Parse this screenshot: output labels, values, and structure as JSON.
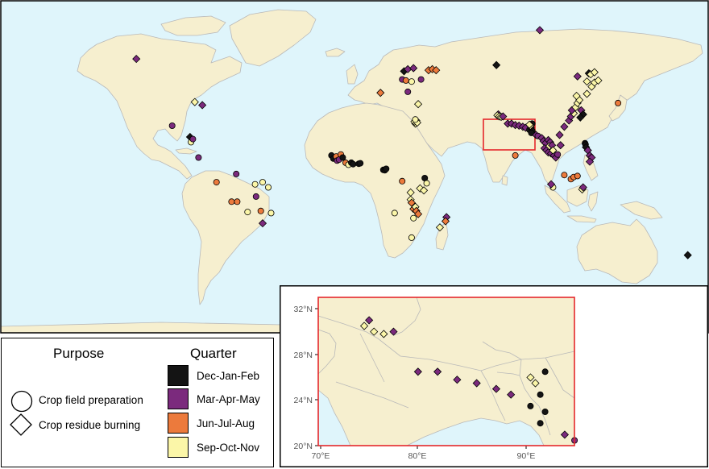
{
  "legend": {
    "purpose_title": "Purpose",
    "quarter_title": "Quarter",
    "purposes": [
      {
        "label": "Crop field preparation",
        "shape": "circle"
      },
      {
        "label": "Crop residue burning",
        "shape": "diamond"
      }
    ],
    "quarters": [
      {
        "label": "Dec-Jan-Feb",
        "color": "#141414"
      },
      {
        "label": "Mar-Apr-May",
        "color": "#7b2a7d"
      },
      {
        "label": "Jun-Jul-Aug",
        "color": "#ec7a3c"
      },
      {
        "label": "Sep-Oct-Nov",
        "color": "#fbf6a8"
      }
    ]
  },
  "colors": {
    "ocean": "#dff5fb",
    "land": "#f6efcf",
    "border": "#b9b9b9",
    "highlight": "#e4272b"
  },
  "inset": {
    "lon_ticks": [
      "70°E",
      "80°E",
      "90°E"
    ],
    "lat_ticks": [
      "32°N",
      "28°N",
      "24°N",
      "20°N"
    ]
  },
  "points": [
    {
      "lon": -117.0,
      "lat": 58.0,
      "shape": "diamond",
      "q": 1
    },
    {
      "lon": -86.0,
      "lat": 37.0,
      "shape": "diamond",
      "q": 3
    },
    {
      "lon": -82.0,
      "lat": 35.5,
      "shape": "diamond",
      "q": 1
    },
    {
      "lon": -98.0,
      "lat": 25.5,
      "shape": "circle",
      "q": 1
    },
    {
      "lon": -88.5,
      "lat": 20.0,
      "shape": "diamond",
      "q": 0
    },
    {
      "lon": -88.0,
      "lat": 17.5,
      "shape": "circle",
      "q": 3
    },
    {
      "lon": -87.0,
      "lat": 19.0,
      "shape": "circle",
      "q": 1
    },
    {
      "lon": -84.0,
      "lat": 10.0,
      "shape": "circle",
      "q": 1
    },
    {
      "lon": -74.5,
      "lat": -2.0,
      "shape": "circle",
      "q": 2
    },
    {
      "lon": -64.0,
      "lat": 2.0,
      "shape": "circle",
      "q": 1
    },
    {
      "lon": -54.0,
      "lat": -3.0,
      "shape": "circle",
      "q": 3
    },
    {
      "lon": -50.0,
      "lat": -2.0,
      "shape": "circle",
      "q": 3
    },
    {
      "lon": -47.0,
      "lat": -4.5,
      "shape": "circle",
      "q": 3
    },
    {
      "lon": -53.5,
      "lat": -9.0,
      "shape": "circle",
      "q": 1
    },
    {
      "lon": -66.5,
      "lat": -11.5,
      "shape": "circle",
      "q": 2
    },
    {
      "lon": -63.5,
      "lat": -11.5,
      "shape": "circle",
      "q": 2
    },
    {
      "lon": -58.0,
      "lat": -16.5,
      "shape": "circle",
      "q": 3
    },
    {
      "lon": -51.0,
      "lat": -16.0,
      "shape": "circle",
      "q": 2
    },
    {
      "lon": -45.5,
      "lat": -17.0,
      "shape": "circle",
      "q": 3
    },
    {
      "lon": -50.0,
      "lat": -22.0,
      "shape": "diamond",
      "q": 1
    },
    {
      "lon": -13.5,
      "lat": 11.0,
      "shape": "circle",
      "q": 0
    },
    {
      "lon": -12.5,
      "lat": 9.5,
      "shape": "circle",
      "q": 0
    },
    {
      "lon": -11.0,
      "lat": 10.5,
      "shape": "circle",
      "q": 2
    },
    {
      "lon": -10.5,
      "lat": 8.5,
      "shape": "circle",
      "q": 1
    },
    {
      "lon": -9.5,
      "lat": 9.0,
      "shape": "circle",
      "q": 1
    },
    {
      "lon": -8.5,
      "lat": 11.5,
      "shape": "circle",
      "q": 2
    },
    {
      "lon": -7.5,
      "lat": 10.0,
      "shape": "circle",
      "q": 0
    },
    {
      "lon": -6.0,
      "lat": 7.5,
      "shape": "circle",
      "q": 2
    },
    {
      "lon": -4.5,
      "lat": 6.5,
      "shape": "circle",
      "q": 3
    },
    {
      "lon": -3.0,
      "lat": 7.5,
      "shape": "circle",
      "q": 0
    },
    {
      "lon": -2.0,
      "lat": 6.8,
      "shape": "circle",
      "q": 0
    },
    {
      "lon": 1.0,
      "lat": 7.0,
      "shape": "circle",
      "q": 0
    },
    {
      "lon": 1.8,
      "lat": 7.2,
      "shape": "circle",
      "q": 0
    },
    {
      "lon": 14.0,
      "lat": 4.0,
      "shape": "circle",
      "q": 0
    },
    {
      "lon": 14.8,
      "lat": 3.8,
      "shape": "circle",
      "q": 0
    },
    {
      "lon": 15.5,
      "lat": 4.5,
      "shape": "circle",
      "q": 0
    },
    {
      "lon": 24.0,
      "lat": -1.5,
      "shape": "circle",
      "q": 2
    },
    {
      "lon": 36.0,
      "lat": 0.0,
      "shape": "circle",
      "q": 0
    },
    {
      "lon": 37.0,
      "lat": -2.5,
      "shape": "circle",
      "q": 3
    },
    {
      "lon": 33.5,
      "lat": -5.0,
      "shape": "diamond",
      "q": 3
    },
    {
      "lon": 35.5,
      "lat": -6.0,
      "shape": "diamond",
      "q": 3
    },
    {
      "lon": 28.5,
      "lat": -7.0,
      "shape": "diamond",
      "q": 3
    },
    {
      "lon": 28.5,
      "lat": -10.5,
      "shape": "diamond",
      "q": 3
    },
    {
      "lon": 29.0,
      "lat": -12.0,
      "shape": "diamond",
      "q": 2
    },
    {
      "lon": 30.0,
      "lat": -15.0,
      "shape": "diamond",
      "q": 2
    },
    {
      "lon": 31.0,
      "lat": -14.0,
      "shape": "diamond",
      "q": 3
    },
    {
      "lon": 31.5,
      "lat": -16.0,
      "shape": "diamond",
      "q": 2
    },
    {
      "lon": 32.5,
      "lat": -17.5,
      "shape": "diamond",
      "q": 2
    },
    {
      "lon": 30.0,
      "lat": -19.5,
      "shape": "circle",
      "q": 3
    },
    {
      "lon": 20.0,
      "lat": -17.0,
      "shape": "circle",
      "q": 3
    },
    {
      "lon": 29.0,
      "lat": -29.0,
      "shape": "circle",
      "q": 3
    },
    {
      "lon": 47.5,
      "lat": -19.0,
      "shape": "diamond",
      "q": 1
    },
    {
      "lon": 47.0,
      "lat": -21.0,
      "shape": "diamond",
      "q": 2
    },
    {
      "lon": 44.0,
      "lat": -24.0,
      "shape": "diamond",
      "q": 3
    },
    {
      "lon": 25.0,
      "lat": 52.0,
      "shape": "diamond",
      "q": 0
    },
    {
      "lon": 27.0,
      "lat": 53.0,
      "shape": "diamond",
      "q": 1
    },
    {
      "lon": 30.0,
      "lat": 53.5,
      "shape": "diamond",
      "q": 1
    },
    {
      "lon": 24.0,
      "lat": 48.0,
      "shape": "circle",
      "q": 1
    },
    {
      "lon": 26.0,
      "lat": 47.5,
      "shape": "circle",
      "q": 2
    },
    {
      "lon": 29.0,
      "lat": 47.0,
      "shape": "circle",
      "q": 3
    },
    {
      "lon": 27.0,
      "lat": 42.0,
      "shape": "circle",
      "q": 1
    },
    {
      "lon": 34.0,
      "lat": 48.0,
      "shape": "circle",
      "q": 1
    },
    {
      "lon": 38.0,
      "lat": 52.5,
      "shape": "diamond",
      "q": 2
    },
    {
      "lon": 40.0,
      "lat": 53.0,
      "shape": "diamond",
      "q": 2
    },
    {
      "lon": 42.0,
      "lat": 52.5,
      "shape": "diamond",
      "q": 2
    },
    {
      "lon": 12.5,
      "lat": 41.5,
      "shape": "diamond",
      "q": 2
    },
    {
      "lon": 32.5,
      "lat": 36.0,
      "shape": "diamond",
      "q": 3
    },
    {
      "lon": 31.0,
      "lat": 26.5,
      "shape": "diamond",
      "q": 3
    },
    {
      "lon": 31.5,
      "lat": 28.0,
      "shape": "diamond",
      "q": 3
    },
    {
      "lon": 30.5,
      "lat": 27.5,
      "shape": "diamond",
      "q": 3
    },
    {
      "lon": 32.0,
      "lat": 27.0,
      "shape": "diamond",
      "q": 3
    },
    {
      "lon": 31.0,
      "lat": 28.5,
      "shape": "circle",
      "q": 3
    },
    {
      "lon": 97.0,
      "lat": 72.0,
      "shape": "diamond",
      "q": 1
    },
    {
      "lon": 74.0,
      "lat": 55.0,
      "shape": "diamond",
      "q": 0
    },
    {
      "lon": 75.0,
      "lat": 31.0,
      "shape": "diamond",
      "q": 1
    },
    {
      "lon": 74.5,
      "lat": 30.5,
      "shape": "diamond",
      "q": 3
    },
    {
      "lon": 75.5,
      "lat": 30.0,
      "shape": "diamond",
      "q": 3
    },
    {
      "lon": 76.5,
      "lat": 29.8,
      "shape": "diamond",
      "q": 3
    },
    {
      "lon": 77.5,
      "lat": 30.0,
      "shape": "diamond",
      "q": 1
    },
    {
      "lon": 80.0,
      "lat": 26.5,
      "shape": "diamond",
      "q": 1
    },
    {
      "lon": 82.0,
      "lat": 26.5,
      "shape": "diamond",
      "q": 1
    },
    {
      "lon": 84.0,
      "lat": 25.8,
      "shape": "diamond",
      "q": 1
    },
    {
      "lon": 86.0,
      "lat": 25.5,
      "shape": "diamond",
      "q": 1
    },
    {
      "lon": 88.0,
      "lat": 25.0,
      "shape": "diamond",
      "q": 1
    },
    {
      "lon": 89.5,
      "lat": 24.5,
      "shape": "diamond",
      "q": 1
    },
    {
      "lon": 91.5,
      "lat": 23.5,
      "shape": "circle",
      "q": 0
    },
    {
      "lon": 92.5,
      "lat": 24.5,
      "shape": "circle",
      "q": 0
    },
    {
      "lon": 93.0,
      "lat": 23.0,
      "shape": "circle",
      "q": 0
    },
    {
      "lon": 92.5,
      "lat": 22.0,
      "shape": "circle",
      "q": 0
    },
    {
      "lon": 93.0,
      "lat": 26.5,
      "shape": "circle",
      "q": 0
    },
    {
      "lon": 92.0,
      "lat": 25.5,
      "shape": "diamond",
      "q": 3
    },
    {
      "lon": 91.5,
      "lat": 26.0,
      "shape": "diamond",
      "q": 3
    },
    {
      "lon": 95.0,
      "lat": 21.0,
      "shape": "diamond",
      "q": 1
    },
    {
      "lon": 96.0,
      "lat": 20.5,
      "shape": "circle",
      "q": 1
    },
    {
      "lon": 98.0,
      "lat": 19.5,
      "shape": "diamond",
      "q": 1
    },
    {
      "lon": 99.0,
      "lat": 18.0,
      "shape": "diamond",
      "q": 1
    },
    {
      "lon": 100.0,
      "lat": 17.0,
      "shape": "diamond",
      "q": 1
    },
    {
      "lon": 101.5,
      "lat": 18.5,
      "shape": "diamond",
      "q": 1
    },
    {
      "lon": 102.5,
      "lat": 17.5,
      "shape": "diamond",
      "q": 1
    },
    {
      "lon": 102.0,
      "lat": 15.5,
      "shape": "diamond",
      "q": 3
    },
    {
      "lon": 103.5,
      "lat": 16.0,
      "shape": "diamond",
      "q": 1
    },
    {
      "lon": 99.5,
      "lat": 14.5,
      "shape": "diamond",
      "q": 1
    },
    {
      "lon": 100.5,
      "lat": 13.5,
      "shape": "diamond",
      "q": 1
    },
    {
      "lon": 101.5,
      "lat": 12.5,
      "shape": "diamond",
      "q": 1
    },
    {
      "lon": 103.0,
      "lat": 12.0,
      "shape": "diamond",
      "q": 1
    },
    {
      "lon": 104.5,
      "lat": 11.0,
      "shape": "diamond",
      "q": 1
    },
    {
      "lon": 105.5,
      "lat": 10.0,
      "shape": "diamond",
      "q": 1
    },
    {
      "lon": 104.0,
      "lat": 13.5,
      "shape": "diamond",
      "q": 3
    },
    {
      "lon": 106.5,
      "lat": 11.5,
      "shape": "circle",
      "q": 1
    },
    {
      "lon": 107.5,
      "lat": 21.0,
      "shape": "diamond",
      "q": 1
    },
    {
      "lon": 108.0,
      "lat": 16.0,
      "shape": "diamond",
      "q": 1
    },
    {
      "lon": 110.0,
      "lat": 25.0,
      "shape": "diamond",
      "q": 1
    },
    {
      "lon": 112.5,
      "lat": 28.0,
      "shape": "diamond",
      "q": 1
    },
    {
      "lon": 113.5,
      "lat": 30.0,
      "shape": "diamond",
      "q": 1
    },
    {
      "lon": 115.0,
      "lat": 31.5,
      "shape": "diamond",
      "q": 3
    },
    {
      "lon": 114.0,
      "lat": 33.0,
      "shape": "diamond",
      "q": 1
    },
    {
      "lon": 116.0,
      "lat": 34.5,
      "shape": "diamond",
      "q": 3
    },
    {
      "lon": 117.0,
      "lat": 36.5,
      "shape": "diamond",
      "q": 3
    },
    {
      "lon": 118.0,
      "lat": 38.0,
      "shape": "diamond",
      "q": 3
    },
    {
      "lon": 116.5,
      "lat": 40.0,
      "shape": "diamond",
      "q": 3
    },
    {
      "lon": 119.0,
      "lat": 33.0,
      "shape": "diamond",
      "q": 1
    },
    {
      "lon": 120.0,
      "lat": 31.0,
      "shape": "diamond",
      "q": 0
    },
    {
      "lon": 118.5,
      "lat": 29.5,
      "shape": "diamond",
      "q": 0
    },
    {
      "lon": 122.0,
      "lat": 41.0,
      "shape": "diamond",
      "q": 3
    },
    {
      "lon": 124.5,
      "lat": 44.5,
      "shape": "diamond",
      "q": 3
    },
    {
      "lon": 126.0,
      "lat": 46.5,
      "shape": "diamond",
      "q": 3
    },
    {
      "lon": 128.0,
      "lat": 47.5,
      "shape": "diamond",
      "q": 3
    },
    {
      "lon": 122.0,
      "lat": 47.0,
      "shape": "diamond",
      "q": 3
    },
    {
      "lon": 123.0,
      "lat": 51.0,
      "shape": "diamond",
      "q": 0
    },
    {
      "lon": 124.0,
      "lat": 50.5,
      "shape": "diamond",
      "q": 3
    },
    {
      "lon": 126.0,
      "lat": 51.5,
      "shape": "diamond",
      "q": 3
    },
    {
      "lon": 117.0,
      "lat": 49.5,
      "shape": "diamond",
      "q": 1
    },
    {
      "lon": 138.5,
      "lat": 36.5,
      "shape": "circle",
      "q": 2
    },
    {
      "lon": 121.0,
      "lat": 17.0,
      "shape": "circle",
      "q": 0
    },
    {
      "lon": 121.3,
      "lat": 16.3,
      "shape": "circle",
      "q": 0
    },
    {
      "lon": 121.5,
      "lat": 15.0,
      "shape": "diamond",
      "q": 0
    },
    {
      "lon": 122.5,
      "lat": 13.5,
      "shape": "diamond",
      "q": 1
    },
    {
      "lon": 123.5,
      "lat": 11.0,
      "shape": "diamond",
      "q": 1
    },
    {
      "lon": 124.5,
      "lat": 10.0,
      "shape": "diamond",
      "q": 1
    },
    {
      "lon": 123.5,
      "lat": 8.0,
      "shape": "diamond",
      "q": 1
    },
    {
      "lon": 110.0,
      "lat": 1.5,
      "shape": "circle",
      "q": 2
    },
    {
      "lon": 113.5,
      "lat": -0.5,
      "shape": "circle",
      "q": 2
    },
    {
      "lon": 115.0,
      "lat": 0.5,
      "shape": "circle",
      "q": 2
    },
    {
      "lon": 117.0,
      "lat": 1.0,
      "shape": "circle",
      "q": 2
    },
    {
      "lon": 104.0,
      "lat": -4.5,
      "shape": "circle",
      "q": 3
    },
    {
      "lon": 103.0,
      "lat": -3.0,
      "shape": "diamond",
      "q": 1
    },
    {
      "lon": 119.5,
      "lat": -5.5,
      "shape": "diamond",
      "q": 3
    },
    {
      "lon": 120.0,
      "lat": -4.5,
      "shape": "diamond",
      "q": 1
    },
    {
      "lon": 84.0,
      "lat": 11.0,
      "shape": "circle",
      "q": 2
    },
    {
      "lon": 175.5,
      "lat": -37.5,
      "shape": "diamond",
      "q": 0
    }
  ]
}
